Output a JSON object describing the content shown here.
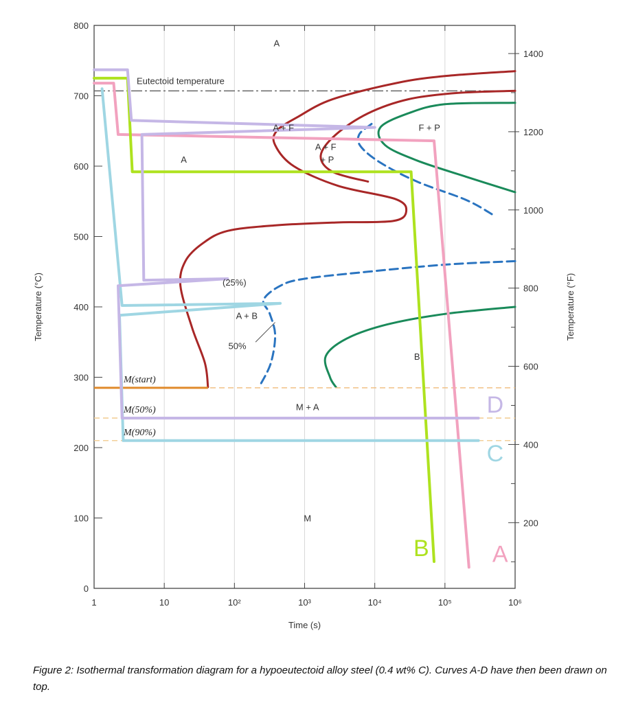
{
  "caption": "Figure 2: Isothermal transformation diagram for a hypoeutectoid alloy steel (0.4 wt% C). Curves A-D have then been drawn on top.",
  "chart_data": {
    "type": "line",
    "xlabel": "Time (s)",
    "ylabel": "Temperature (°C)",
    "y2label": "Temperature (°F)",
    "x_scale": "log",
    "xlim": [
      1,
      1000000
    ],
    "ylim": [
      0,
      800
    ],
    "y2lim": [
      32,
      1472
    ],
    "x_ticks": [
      "1",
      "10",
      "10²",
      "10³",
      "10⁴",
      "10⁵",
      "10⁶"
    ],
    "x_tick_values": [
      1,
      10,
      100,
      1000,
      10000,
      100000,
      1000000
    ],
    "y_ticks": [
      "0",
      "100",
      "200",
      "300",
      "400",
      "500",
      "600",
      "700",
      "800"
    ],
    "y_tick_values": [
      0,
      100,
      200,
      300,
      400,
      500,
      600,
      700,
      800
    ],
    "y2_ticks": [
      "200",
      "400",
      "600",
      "800",
      "1000",
      "1200",
      "1400"
    ],
    "y2_tick_values": [
      200,
      400,
      600,
      800,
      1000,
      1200,
      1400
    ],
    "grid": true,
    "eutectoid": {
      "label": "Eutectoid temperature",
      "temp": 707
    },
    "horizontal_lines": [
      {
        "name": "M(start)",
        "temp": 285
      },
      {
        "name": "M(50%)",
        "temp": 242
      },
      {
        "name": "M(90%)",
        "temp": 210
      }
    ],
    "region_labels": [
      {
        "text": "A",
        "x": 400,
        "y": 775
      },
      {
        "text": "A",
        "x": 19,
        "y": 610
      },
      {
        "text": "A + F",
        "x": 500,
        "y": 655
      },
      {
        "text": "F + P",
        "x": 60000,
        "y": 655
      },
      {
        "text": "A + F",
        "x": 2000,
        "y": 628
      },
      {
        "text": "+ P",
        "x": 2100,
        "y": 610
      },
      {
        "text": "(25%)",
        "x": 100,
        "y": 435
      },
      {
        "text": "A + B",
        "x": 150,
        "y": 388
      },
      {
        "text": "50%",
        "x": 110,
        "y": 345
      },
      {
        "text": "B",
        "x": 40000,
        "y": 330
      },
      {
        "text": "M + A",
        "x": 1100,
        "y": 258
      },
      {
        "text": "M",
        "x": 1100,
        "y": 100
      }
    ],
    "ttt_curves": [
      {
        "name": "start",
        "color": "#a82727",
        "style": "solid",
        "points": [
          [
            1000000,
            735
          ],
          [
            100000,
            728
          ],
          [
            20000,
            718
          ],
          [
            2500,
            695
          ],
          [
            800,
            670
          ],
          [
            400,
            650
          ],
          [
            380,
            630
          ],
          [
            700,
            600
          ],
          [
            3000,
            572
          ],
          [
            20000,
            553
          ],
          [
            28000,
            535
          ],
          [
            18000,
            522
          ],
          [
            3000,
            520
          ],
          [
            400,
            516
          ],
          [
            80,
            508
          ],
          [
            35,
            490
          ],
          [
            20,
            465
          ],
          [
            17,
            430
          ],
          [
            25,
            370
          ],
          [
            38,
            320
          ],
          [
            42,
            286
          ]
        ]
      },
      {
        "name": "ferrite-end",
        "color": "#a82727",
        "style": "solid",
        "points": [
          [
            1000000,
            707
          ],
          [
            150000,
            704
          ],
          [
            30000,
            695
          ],
          [
            8000,
            675
          ],
          [
            2800,
            645
          ],
          [
            1700,
            615
          ],
          [
            2500,
            592
          ],
          [
            8000,
            578
          ]
        ]
      },
      {
        "name": "50%",
        "color": "#2a74c0",
        "style": "dashed",
        "points": [
          [
            9000,
            660
          ],
          [
            6000,
            645
          ],
          [
            6300,
            628
          ],
          [
            12000,
            605
          ],
          [
            40000,
            578
          ],
          [
            200000,
            552
          ],
          [
            500000,
            530
          ]
        ]
      },
      {
        "name": "50%-low",
        "color": "#2a74c0",
        "style": "dashed",
        "points": [
          [
            1000000,
            465
          ],
          [
            100000,
            460
          ],
          [
            8000,
            450
          ],
          [
            1000,
            440
          ],
          [
            450,
            430
          ],
          [
            260,
            410
          ],
          [
            320,
            390
          ],
          [
            380,
            360
          ],
          [
            330,
            320
          ],
          [
            230,
            288
          ]
        ]
      },
      {
        "name": "finish",
        "color": "#1a8a5a",
        "style": "solid",
        "points": [
          [
            1000000,
            690
          ],
          [
            100000,
            688
          ],
          [
            30000,
            675
          ],
          [
            12000,
            655
          ],
          [
            14000,
            630
          ],
          [
            40000,
            608
          ],
          [
            200000,
            585
          ],
          [
            1000000,
            563
          ]
        ]
      },
      {
        "name": "finish-low",
        "color": "#1a8a5a",
        "style": "solid",
        "points": [
          [
            1000000,
            400
          ],
          [
            100000,
            390
          ],
          [
            15000,
            375
          ],
          [
            4000,
            355
          ],
          [
            2000,
            330
          ],
          [
            2300,
            300
          ],
          [
            2800,
            286
          ]
        ]
      }
    ],
    "series": [
      {
        "name": "A",
        "color": "#f2a2bf",
        "points": [
          [
            1.0,
            718
          ],
          [
            1.9,
            718
          ],
          [
            2.2,
            645
          ],
          [
            70000,
            636
          ],
          [
            220000,
            30
          ]
        ]
      },
      {
        "name": "B",
        "color": "#aee21f",
        "points": [
          [
            1.0,
            725
          ],
          [
            3.0,
            725
          ],
          [
            3.5,
            592
          ],
          [
            33000,
            592
          ],
          [
            70000,
            38
          ]
        ]
      },
      {
        "name": "C",
        "color": "#9fd6e3",
        "points": [
          [
            1.3,
            710
          ],
          [
            2.5,
            402
          ],
          [
            450,
            405
          ],
          [
            2.3,
            388
          ],
          [
            2.6,
            210
          ],
          [
            300000,
            210
          ]
        ]
      },
      {
        "name": "D",
        "color": "#c5b7e6",
        "points": [
          [
            1.0,
            737
          ],
          [
            3.0,
            737
          ],
          [
            3.4,
            665
          ],
          [
            10000,
            655
          ],
          [
            4.8,
            645
          ],
          [
            5.1,
            438
          ],
          [
            80,
            440
          ],
          [
            2.2,
            430
          ],
          [
            2.5,
            242
          ],
          [
            300000,
            242
          ]
        ]
      }
    ]
  }
}
